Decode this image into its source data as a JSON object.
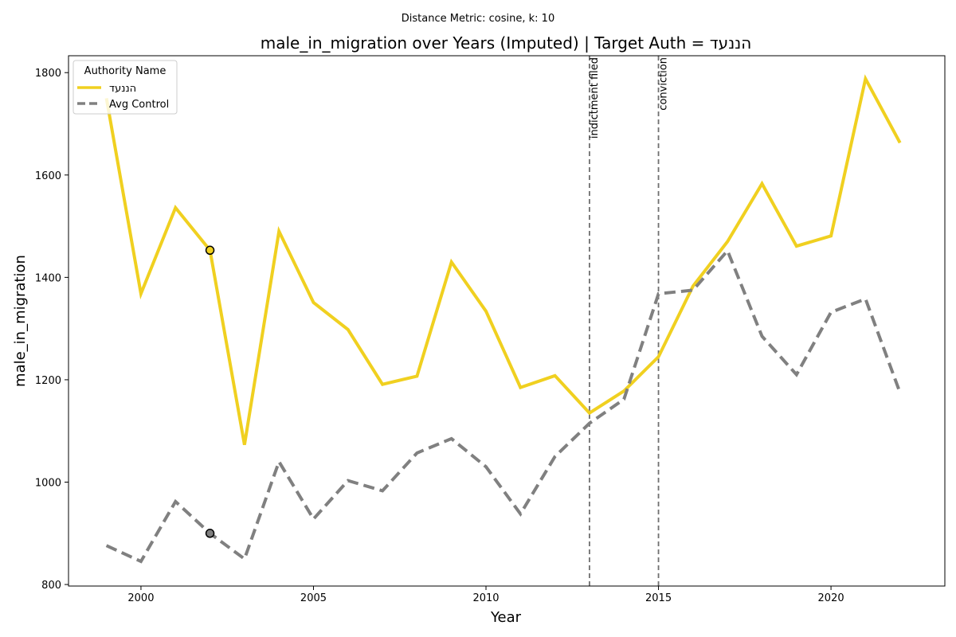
{
  "chart_data": {
    "type": "line",
    "suptitle": "Distance Metric: cosine, k: 10",
    "title": "male_in_migration over Years (Imputed) | Target Auth = הננעד",
    "xlabel": "Year",
    "ylabel": "male_in_migration",
    "xlim": [
      1997.9,
      2023.3
    ],
    "ylim": [
      797,
      1833
    ],
    "xticks": [
      2000,
      2005,
      2010,
      2015,
      2020
    ],
    "yticks": [
      800,
      1000,
      1200,
      1400,
      1600,
      1800
    ],
    "grid": false,
    "legend": {
      "title": "Authority Name",
      "placement": "top-left"
    },
    "x": [
      1999,
      2000,
      2001,
      2002,
      2003,
      2004,
      2005,
      2006,
      2007,
      2008,
      2009,
      2010,
      2011,
      2012,
      2013,
      2014,
      2015,
      2016,
      2017,
      2018,
      2019,
      2020,
      2021,
      2022
    ],
    "series": [
      {
        "name": "הננעד",
        "color": "#f0d020",
        "style": "solid",
        "values": [
          1750,
          1368,
          1536,
          1453,
          1073,
          1490,
          1351,
          1298,
          1191,
          1207,
          1430,
          1334,
          1185,
          1208,
          1135,
          1178,
          1245,
          1383,
          1470,
          1583,
          1461,
          1481,
          1788,
          1663
        ]
      },
      {
        "name": "Avg Control",
        "color": "#808080",
        "style": "dashed",
        "values": [
          876,
          845,
          962,
          900,
          850,
          1040,
          928,
          1003,
          983,
          1057,
          1085,
          1030,
          938,
          1050,
          1115,
          1162,
          1368,
          1375,
          1452,
          1285,
          1210,
          1332,
          1358,
          1175
        ]
      }
    ],
    "markers": [
      {
        "series": 0,
        "x": 2002,
        "y": 1453
      },
      {
        "series": 1,
        "x": 2002,
        "y": 900
      }
    ],
    "vlines": [
      {
        "x": 2013,
        "label": "indictment filed"
      },
      {
        "x": 2015,
        "label": "conviction"
      }
    ]
  }
}
